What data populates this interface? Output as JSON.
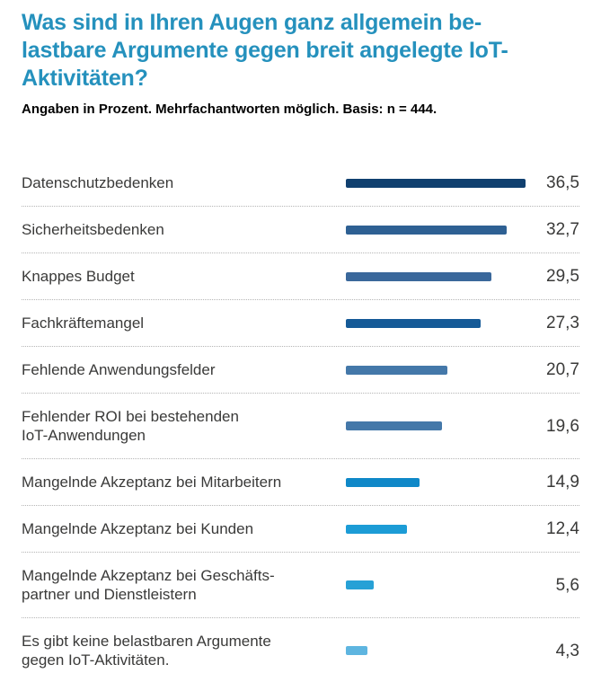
{
  "header": {
    "title_lines": [
      "Was sind in Ihren Augen ganz allgemein be-",
      "lastbare Argumente gegen breit angelegte IoT-",
      "Aktivitäten?"
    ],
    "subtitle": "Angaben in Prozent. Mehrfachantworten möglich. Basis: n = 444."
  },
  "colors": {
    "title": "#2591bd",
    "subtitle_text": "#000000",
    "label_text": "#3a3a39",
    "separator": "#b5b5b5",
    "bar_palette": [
      "#10406f",
      "#2e6093",
      "#3a689b",
      "#155a97",
      "#4478a9",
      "#4478a9",
      "#0f88c8",
      "#1c9cd6",
      "#27a1d6",
      "#5eb5e0"
    ]
  },
  "chart_data": {
    "type": "bar",
    "orientation": "horizontal",
    "title": "Was sind in Ihren Augen ganz allgemein belastbare Argumente gegen breit angelegte IoT-Aktivitäten?",
    "subtitle": "Angaben in Prozent. Mehrfachantworten möglich. Basis: n = 444.",
    "unit": "percent",
    "basis_n": 444,
    "categories": [
      "Datenschutzbedenken",
      "Sicherheitsbedenken",
      "Knappes Budget",
      "Fachkräftemangel",
      "Fehlende Anwendungsfelder",
      "Fehlender ROI bei bestehenden IoT-Anwendungen",
      "Mangelnde Akzeptanz bei Mitarbeitern",
      "Mangelnde Akzeptanz bei Kunden",
      "Mangelnde Akzeptanz bei Geschäftspartner und Dienstleistern",
      "Es gibt keine belastbaren Argumente gegen IoT-Aktivitäten."
    ],
    "values": [
      36.5,
      32.7,
      29.5,
      27.3,
      20.7,
      19.6,
      14.9,
      12.4,
      5.6,
      4.3
    ],
    "value_labels": [
      "36,5",
      "32,7",
      "29,5",
      "27,3",
      "20,7",
      "19,6",
      "14,9",
      "12,4",
      "5,6",
      "4,3"
    ],
    "xlim": [
      0,
      36.5
    ],
    "grid": false,
    "legend": false
  },
  "rows": [
    {
      "label_lines": [
        "Datenschutzbedenken"
      ],
      "value": 36.5,
      "value_label": "36,5",
      "color": "#10406f"
    },
    {
      "label_lines": [
        "Sicherheitsbedenken"
      ],
      "value": 32.7,
      "value_label": "32,7",
      "color": "#2e6093"
    },
    {
      "label_lines": [
        "Knappes Budget"
      ],
      "value": 29.5,
      "value_label": "29,5",
      "color": "#3a689b"
    },
    {
      "label_lines": [
        "Fachkräftemangel"
      ],
      "value": 27.3,
      "value_label": "27,3",
      "color": "#155a97"
    },
    {
      "label_lines": [
        "Fehlende Anwendungsfelder"
      ],
      "value": 20.7,
      "value_label": "20,7",
      "color": "#4478a9"
    },
    {
      "label_lines": [
        "Fehlender ROI bei bestehenden",
        "IoT-Anwendungen"
      ],
      "value": 19.6,
      "value_label": "19,6",
      "color": "#4478a9"
    },
    {
      "label_lines": [
        "Mangelnde Akzeptanz bei Mitarbeitern"
      ],
      "value": 14.9,
      "value_label": "14,9",
      "color": "#0f88c8"
    },
    {
      "label_lines": [
        "Mangelnde Akzeptanz bei Kunden"
      ],
      "value": 12.4,
      "value_label": "12,4",
      "color": "#1c9cd6"
    },
    {
      "label_lines": [
        "Mangelnde Akzeptanz bei Geschäfts-",
        "partner und Dienstleistern"
      ],
      "value": 5.6,
      "value_label": "5,6",
      "color": "#27a1d6"
    },
    {
      "label_lines": [
        "Es gibt keine belastbaren Argumente",
        "gegen IoT-Aktivitäten."
      ],
      "value": 4.3,
      "value_label": "4,3",
      "color": "#5eb5e0"
    }
  ]
}
